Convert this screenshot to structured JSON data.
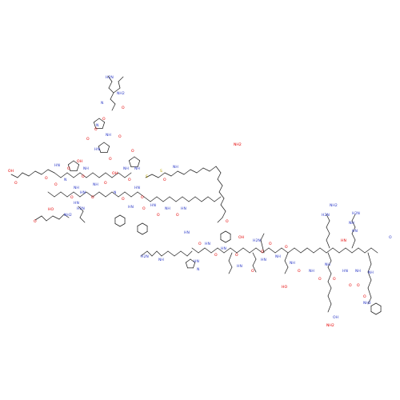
{
  "structure": {
    "atom_colors": {
      "oxygen": "#e60000",
      "nitrogen": "#2e3cc8",
      "sulfur": "#b8a400",
      "carbon": "#222222"
    },
    "atom_labels": [
      "NH2",
      "O",
      "H2N",
      "O",
      "N",
      "O",
      "N",
      "O",
      "O",
      "NH",
      "O",
      "HN",
      "OH",
      "O",
      "NH",
      "O",
      "HN",
      "O",
      "OH",
      "O",
      "O",
      "N",
      "HO",
      "O",
      "O",
      "NH",
      "O",
      "HN",
      "O",
      "NH",
      "HN",
      "NH2",
      "H2N",
      "O",
      "OH",
      "N",
      "NH",
      "O",
      "NH",
      "S",
      "S",
      "NH",
      "O",
      "HN",
      "O",
      "O",
      "HN",
      "O",
      "HN",
      "O",
      "NH",
      "O",
      "HN",
      "H2N",
      "NH",
      "HN",
      "HN",
      "N",
      "O",
      "OH",
      "O",
      "HN",
      "O",
      "HN",
      "O",
      "H2N",
      "HN",
      "O",
      "O",
      "HN",
      "O",
      "NH",
      "O",
      "NH",
      "HO",
      "O",
      "NH",
      "O",
      "NH",
      "O",
      "HN",
      "H2N",
      "NH2",
      "O",
      "NH",
      "O",
      "NH",
      "O",
      "NH2",
      "H2N",
      "NH",
      "HN",
      "HN",
      "O",
      "NH2",
      "OH",
      "NH2",
      "O"
    ]
  }
}
